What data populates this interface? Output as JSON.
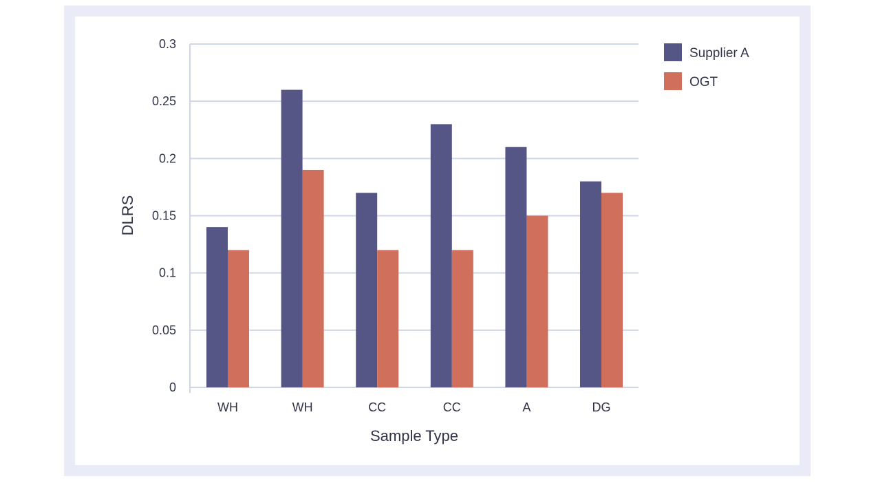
{
  "colors": {
    "series_a": "#555685",
    "series_b": "#d06f5b",
    "grid": "#cfd6e8",
    "frame": "#e9ecf6"
  },
  "chart_data": {
    "type": "bar",
    "categories": [
      "WH",
      "WH",
      "CC",
      "CC",
      "A",
      "DG"
    ],
    "series": [
      {
        "name": "Supplier A",
        "values": [
          0.14,
          0.26,
          0.17,
          0.23,
          0.21,
          0.18
        ]
      },
      {
        "name": "OGT",
        "values": [
          0.12,
          0.19,
          0.12,
          0.12,
          0.15,
          0.17
        ]
      }
    ],
    "xlabel": "Sample Type",
    "ylabel": "DLRS",
    "ylim": [
      0,
      0.3
    ],
    "yticks": [
      "0",
      "0.05",
      "0.1",
      "0.15",
      "0.2",
      "0.25",
      "0.3"
    ],
    "grid": true,
    "legend_position": "top-right"
  }
}
